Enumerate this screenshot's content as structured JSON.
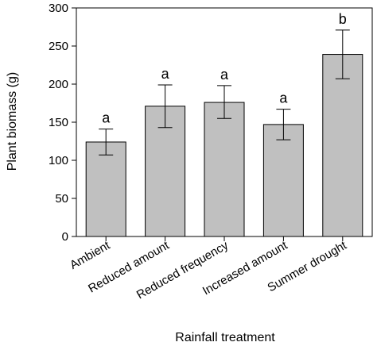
{
  "chart_data": {
    "type": "bar",
    "title": "",
    "xlabel": "Rainfall treatment",
    "ylabel": "Plant biomass (g)",
    "ylim": [
      0,
      300
    ],
    "yticks": [
      0,
      50,
      100,
      150,
      200,
      250,
      300
    ],
    "grid": false,
    "categories": [
      "Ambient",
      "Reduced amount",
      "Reduced frequency",
      "Increased amount",
      "Summer drought"
    ],
    "values": [
      124,
      171,
      176,
      147,
      239
    ],
    "error_low": [
      107,
      143,
      155,
      127,
      207
    ],
    "error_high": [
      141,
      199,
      198,
      167,
      271
    ],
    "significance_letters": [
      "a",
      "a",
      "a",
      "a",
      "b"
    ],
    "colors": {
      "bar_fill": "#c0c0c0",
      "bar_stroke": "#000000",
      "axis": "#000000"
    }
  }
}
